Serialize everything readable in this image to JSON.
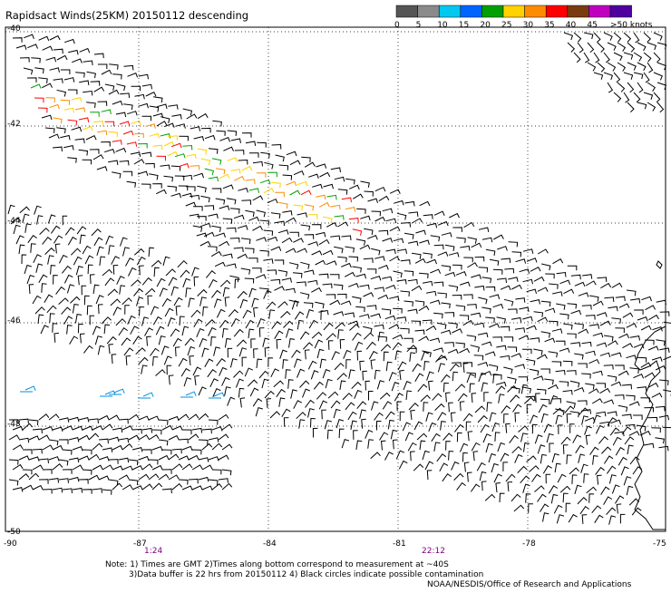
{
  "title": "Rapidsact Winds(25KM) 20150112 descending",
  "colorbar": {
    "labels": [
      "0",
      "5",
      "10",
      "15",
      "20",
      "25",
      "30",
      "35",
      "40",
      "45",
      ">50 knots"
    ],
    "colors": [
      "#555555",
      "#8a8a8a",
      "#00c8f0",
      "#0064ff",
      "#00a000",
      "#ffd200",
      "#ff8c00",
      "#ff0000",
      "#7a3a10",
      "#c000c0",
      "#5000a0"
    ]
  },
  "map": {
    "lat_labels": [
      "-40",
      "-42",
      "-44",
      "-46",
      "-48",
      "-50"
    ],
    "lon_labels": [
      "-90",
      "-87",
      "-84",
      "-81",
      "-78",
      "-75"
    ],
    "time_labels": [
      "1:24",
      "22:12"
    ],
    "time_label_color": "#800080",
    "grid_style": "dotted"
  },
  "notes": {
    "line1": "Note: 1) Times are GMT 2)Times along bottom correspond to measurement at ~40S",
    "line2": "3)Data buffer is 22 hrs from 20150112 4) Black circles indicate possible contamination",
    "credit": "NOAA/NESDIS/Office of Research and Applications"
  }
}
